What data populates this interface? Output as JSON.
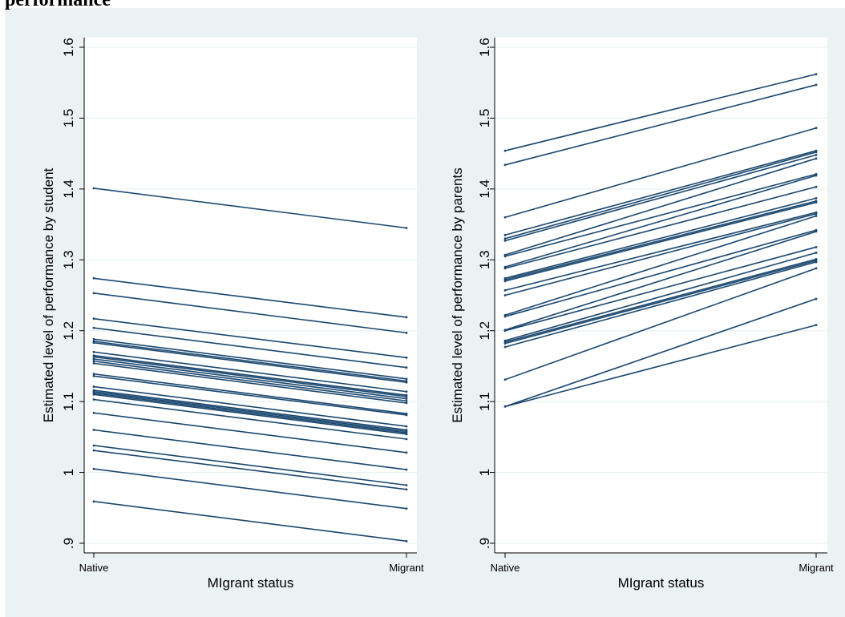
{
  "heading": "performance",
  "colors": {
    "background": "#eaf2f3",
    "plot_bg": "#ffffff",
    "grid": "#eaf2f3",
    "line": "#1a476f",
    "axis": "#000000"
  },
  "chart_data": [
    {
      "type": "line",
      "x": [
        "Native",
        "Migrant"
      ],
      "xlabel": "MIgrant status",
      "ylabel": "Estimated level of performance by student",
      "ylim": [
        0.9,
        1.6
      ],
      "yticks": [
        0.9,
        1.0,
        1.1,
        1.2,
        1.3,
        1.4,
        1.5,
        1.6
      ],
      "ytick_labels": [
        ".9",
        "1",
        "1.1",
        "1.2",
        "1.3",
        "1.4",
        "1.5",
        "1.6"
      ],
      "grid": true,
      "series": [
        {
          "values": [
            1.401,
            1.345
          ]
        },
        {
          "values": [
            1.274,
            1.219
          ]
        },
        {
          "values": [
            1.253,
            1.197
          ]
        },
        {
          "values": [
            1.217,
            1.162
          ]
        },
        {
          "values": [
            1.204,
            1.148
          ]
        },
        {
          "values": [
            1.188,
            1.132
          ]
        },
        {
          "values": [
            1.185,
            1.129
          ]
        },
        {
          "values": [
            1.183,
            1.127
          ]
        },
        {
          "values": [
            1.17,
            1.114
          ]
        },
        {
          "values": [
            1.165,
            1.109
          ]
        },
        {
          "values": [
            1.163,
            1.107
          ]
        },
        {
          "values": [
            1.16,
            1.104
          ]
        },
        {
          "values": [
            1.157,
            1.101
          ]
        },
        {
          "values": [
            1.154,
            1.098
          ]
        },
        {
          "values": [
            1.139,
            1.083
          ]
        },
        {
          "values": [
            1.136,
            1.081
          ]
        },
        {
          "values": [
            1.121,
            1.065
          ]
        },
        {
          "values": [
            1.116,
            1.06
          ]
        },
        {
          "values": [
            1.114,
            1.058
          ]
        },
        {
          "values": [
            1.112,
            1.056
          ]
        },
        {
          "values": [
            1.11,
            1.054
          ]
        },
        {
          "values": [
            1.103,
            1.047
          ]
        },
        {
          "values": [
            1.084,
            1.028
          ]
        },
        {
          "values": [
            1.06,
            1.004
          ]
        },
        {
          "values": [
            1.038,
            0.982
          ]
        },
        {
          "values": [
            1.031,
            0.976
          ]
        },
        {
          "values": [
            1.005,
            0.949
          ]
        },
        {
          "values": [
            0.959,
            0.903
          ]
        }
      ]
    },
    {
      "type": "line",
      "x": [
        "Native",
        "Migrant"
      ],
      "xlabel": "MIgrant status",
      "ylabel": "Estimated level of performance by parents",
      "ylim": [
        0.9,
        1.6
      ],
      "yticks": [
        0.9,
        1.0,
        1.1,
        1.2,
        1.3,
        1.4,
        1.5,
        1.6
      ],
      "ytick_labels": [
        ".9",
        "1",
        "1.1",
        "1.2",
        "1.3",
        "1.4",
        "1.5",
        "1.6"
      ],
      "grid": true,
      "series": [
        {
          "values": [
            1.454,
            1.562
          ]
        },
        {
          "values": [
            1.434,
            1.547
          ]
        },
        {
          "values": [
            1.36,
            1.486
          ]
        },
        {
          "values": [
            1.335,
            1.454
          ]
        },
        {
          "values": [
            1.33,
            1.452
          ]
        },
        {
          "values": [
            1.327,
            1.448
          ]
        },
        {
          "values": [
            1.307,
            1.443
          ]
        },
        {
          "values": [
            1.305,
            1.421
          ]
        },
        {
          "values": [
            1.29,
            1.419
          ]
        },
        {
          "values": [
            1.288,
            1.403
          ]
        },
        {
          "values": [
            1.274,
            1.387
          ]
        },
        {
          "values": [
            1.272,
            1.383
          ]
        },
        {
          "values": [
            1.27,
            1.381
          ]
        },
        {
          "values": [
            1.257,
            1.367
          ]
        },
        {
          "values": [
            1.25,
            1.365
          ]
        },
        {
          "values": [
            1.222,
            1.362
          ]
        },
        {
          "values": [
            1.22,
            1.342
          ]
        },
        {
          "values": [
            1.201,
            1.34
          ]
        },
        {
          "values": [
            1.2,
            1.318
          ]
        },
        {
          "values": [
            1.186,
            1.31
          ]
        },
        {
          "values": [
            1.184,
            1.301
          ]
        },
        {
          "values": [
            1.182,
            1.299
          ]
        },
        {
          "values": [
            1.177,
            1.297
          ]
        },
        {
          "values": [
            1.131,
            1.288
          ]
        },
        {
          "values": [
            1.093,
            1.245
          ]
        },
        {
          "values": [
            1.093,
            1.208
          ]
        }
      ]
    }
  ]
}
